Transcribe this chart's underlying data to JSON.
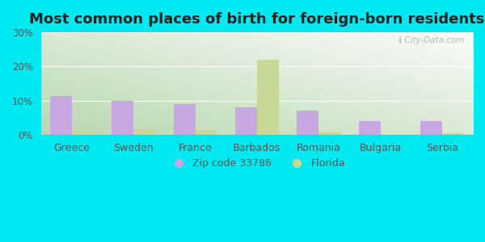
{
  "title": "Most common places of birth for foreign-born residents",
  "categories": [
    "Greece",
    "Sweden",
    "France",
    "Barbados",
    "Romania",
    "Bulgaria",
    "Serbia"
  ],
  "zip_values": [
    11.5,
    10.0,
    9.0,
    8.0,
    7.2,
    4.0,
    4.0
  ],
  "florida_values": [
    0.8,
    1.8,
    1.3,
    22.0,
    0.8,
    0.0,
    0.5
  ],
  "zip_color": "#c8a8e0",
  "florida_color": "#c8d898",
  "ylim": [
    0,
    30
  ],
  "yticks": [
    0,
    10,
    20,
    30
  ],
  "ytick_labels": [
    "0%",
    "10%",
    "20%",
    "30%"
  ],
  "bar_width": 0.35,
  "legend_zip_label": "Zip code 33786",
  "legend_florida_label": "Florida",
  "watermark": "ℹ City-Data.com",
  "title_fontsize": 13,
  "label_fontsize": 9,
  "tick_fontsize": 8.5,
  "legend_fontsize": 9,
  "outer_bg": "#00e8f0",
  "grad_left": "#b8d8b0",
  "grad_right": "#eef8ee"
}
